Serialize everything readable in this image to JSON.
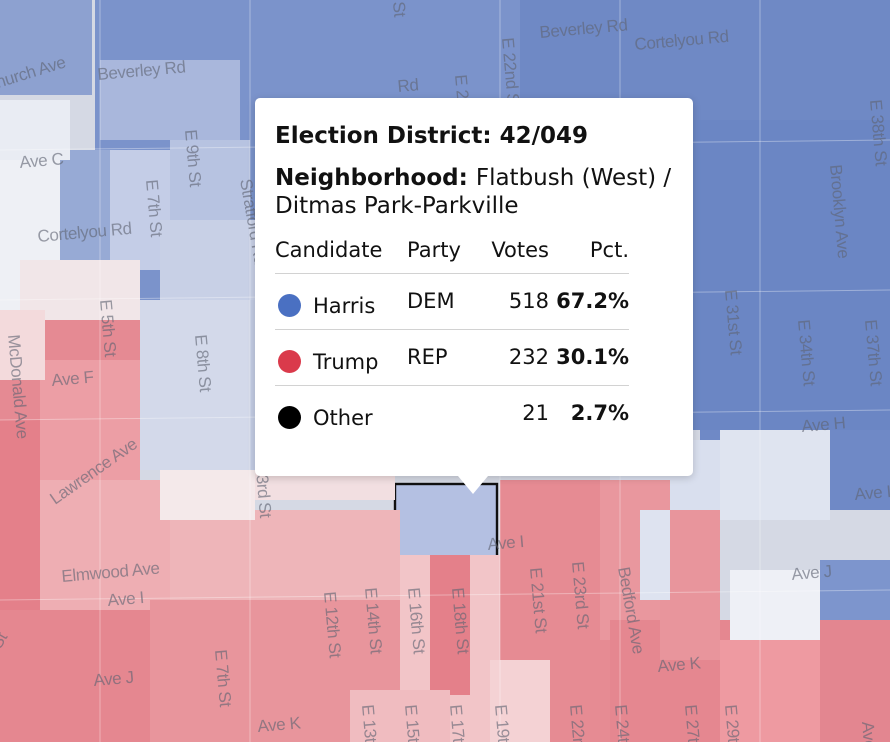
{
  "colors": {
    "dem_dot": "#4a70c2",
    "rep_dot": "#da3a4b",
    "other_dot": "#000000",
    "dem_strong": "#6c86c7",
    "rep_strong": "#e4808a"
  },
  "map": {
    "street_labels": [
      "hurch Ave",
      "Beverley Rd",
      "Beverley Rd",
      "Cortelyou Rd",
      "E 22nd St",
      "E 21",
      "E 38th St",
      "E 9th St",
      "E 7th St",
      "Ave C",
      "Cortelyou Rd",
      "Stratford Rd",
      "Brooklyn Ave",
      "E 5th St",
      "E 8th St",
      "McDonald Ave",
      "Ave F",
      "E 31st St",
      "E 34th St",
      "E 37th St",
      "Ave H",
      "Lawrence Ave",
      "E 3rd St",
      "Ave I",
      "Elmwood Ave",
      "Ave I",
      "Ave I",
      "Ave J",
      "E 12th St",
      "E 14th St",
      "E 16th St",
      "E 18th St",
      "E 21st St",
      "E 23rd St",
      "Bedford Ave",
      "Ave K",
      "Ave J",
      "E 7th St",
      "Ave K",
      "E 13th",
      "E 15th",
      "E 17th",
      "E 19th",
      "E 22nd",
      "E 24th",
      "E 27th",
      "E 29th",
      "Ave",
      "Rd",
      "St",
      "St"
    ]
  },
  "popup": {
    "district_label": "Election District:",
    "district_value": "42/049",
    "neighborhood_label": "Neighborhood:",
    "neighborhood_value": "Flatbush (West) / Ditmas Park-Parkville",
    "columns": [
      "Candidate",
      "Party",
      "Votes",
      "Pct."
    ],
    "rows": [
      {
        "candidate": "Harris",
        "party": "DEM",
        "votes": "518",
        "pct": "67.2%"
      },
      {
        "candidate": "Trump",
        "party": "REP",
        "votes": "232",
        "pct": "30.1%"
      },
      {
        "candidate": "Other",
        "party": "",
        "votes": "21",
        "pct": "2.7%"
      }
    ]
  }
}
